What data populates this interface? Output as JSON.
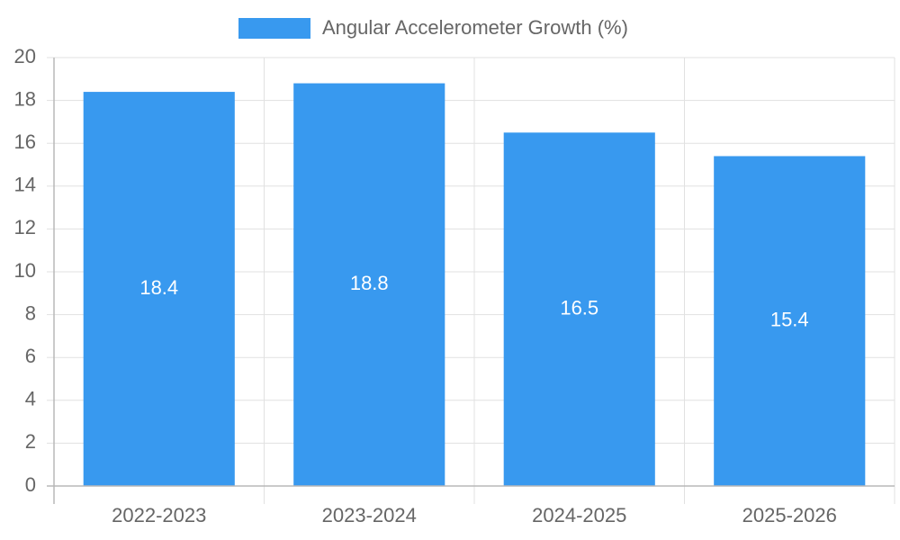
{
  "chart_data": {
    "type": "bar",
    "categories": [
      "2022-2023",
      "2023-2024",
      "2024-2025",
      "2025-2026"
    ],
    "series": [
      {
        "name": "Angular Accelerometer Growth (%)",
        "values": [
          18.4,
          18.8,
          16.5,
          15.4
        ],
        "color": "#3899ef"
      }
    ],
    "y_ticks": [
      "0",
      "2",
      "4",
      "6",
      "8",
      "10",
      "12",
      "14",
      "16",
      "18",
      "20"
    ],
    "ylim": [
      0,
      20
    ],
    "grid": true,
    "legend_position": "top-center",
    "data_labels_inside": true
  }
}
